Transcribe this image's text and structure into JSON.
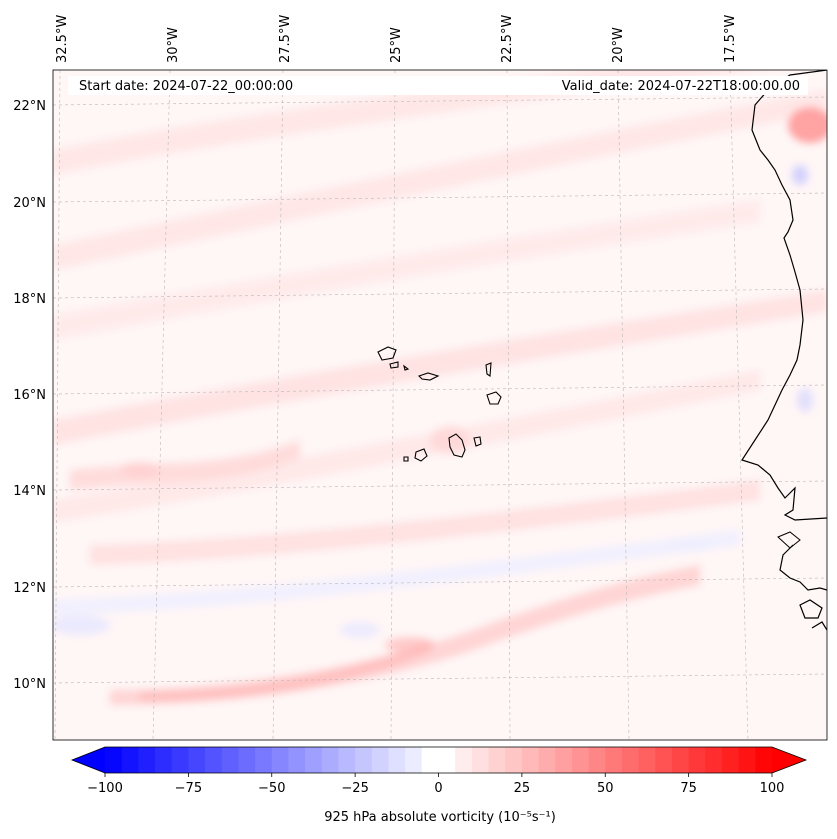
{
  "header": {
    "start_date": "Start date: 2024-07-22_00:00:00",
    "valid_date": "Valid_date: 2024-07-22T18:00:00.00"
  },
  "axes": {
    "lon_labels": [
      "32.5°W",
      "30°W",
      "27.5°W",
      "25°W",
      "22.5°W",
      "20°W",
      "17.5°W"
    ],
    "lat_labels": [
      "22°N",
      "20°N",
      "18°N",
      "16°N",
      "14°N",
      "12°N",
      "10°N"
    ]
  },
  "colorbar": {
    "label": "925 hPa absolute vorticity (10⁻⁵s⁻¹)",
    "ticks": [
      "−100",
      "−75",
      "−50",
      "−25",
      "0",
      "25",
      "50",
      "75",
      "100"
    ],
    "min": -100,
    "max": 100,
    "step": 5,
    "neg_color": "#0000ff",
    "pos_color": "#ff0000",
    "mid_color": "#ffffff"
  },
  "colors": {
    "land_outline": "#000000",
    "grid": "#b0b0b0",
    "field_base": "#fff6f6",
    "field_pink": "#ffe3e3",
    "field_pink_strong": "#ffcfcf",
    "field_blue": "#f1f1ff"
  },
  "map_features": {
    "title": "Cape Verde region, West African coast"
  }
}
